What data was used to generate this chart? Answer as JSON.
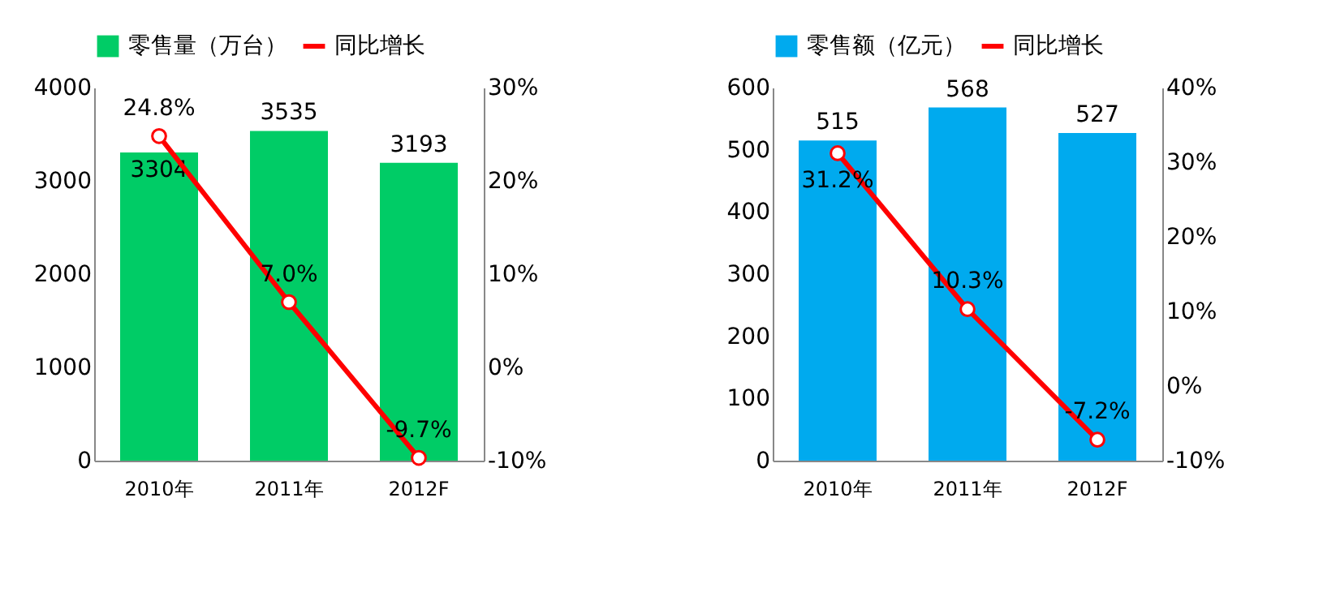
{
  "chart_data": [
    {
      "type": "bar",
      "categories": [
        "2010年",
        "2011年",
        "2012F"
      ],
      "series": [
        {
          "name": "零售量（万台）",
          "color": "#00cc66",
          "values": [
            3304,
            3535,
            3193
          ],
          "value_labels": [
            "3304",
            "3535",
            "3193"
          ]
        },
        {
          "name": "同比增长",
          "type": "line",
          "axis": "y2",
          "color": "#ff0000",
          "marker": "circle",
          "values": [
            24.8,
            7.0,
            -9.7
          ],
          "value_labels": [
            "24.8%",
            "7.0%",
            "-9.7%"
          ]
        }
      ],
      "ylim": [
        0,
        4000
      ],
      "yticks": [
        0,
        1000,
        2000,
        3000,
        4000
      ],
      "y2lim": [
        -10,
        30
      ],
      "y2ticks": [
        {
          "value": -10,
          "label": "-10%"
        },
        {
          "value": 0,
          "label": "0%"
        },
        {
          "value": 10,
          "label": "10%"
        },
        {
          "value": 20,
          "label": "20%"
        },
        {
          "value": 30,
          "label": "30%"
        }
      ],
      "legend": "top",
      "grid": false
    },
    {
      "type": "bar",
      "categories": [
        "2010年",
        "2011年",
        "2012F"
      ],
      "series": [
        {
          "name": "零售额（亿元）",
          "color": "#00aaee",
          "values": [
            515,
            568,
            527
          ],
          "value_labels": [
            "515",
            "568",
            "527"
          ]
        },
        {
          "name": "同比增长",
          "type": "line",
          "axis": "y2",
          "color": "#ff0000",
          "marker": "circle",
          "values": [
            31.2,
            10.3,
            -7.2
          ],
          "value_labels": [
            "31.2%",
            "10.3%",
            "-7.2%"
          ]
        }
      ],
      "ylim": [
        0,
        600
      ],
      "yticks": [
        0,
        100,
        200,
        300,
        400,
        500,
        600
      ],
      "y2lim": [
        -10,
        40
      ],
      "y2ticks": [
        {
          "value": -10,
          "label": "-10%"
        },
        {
          "value": 0,
          "label": "0%"
        },
        {
          "value": 10,
          "label": "10%"
        },
        {
          "value": 20,
          "label": "20%"
        },
        {
          "value": 30,
          "label": "30%"
        },
        {
          "value": 40,
          "label": "40%"
        }
      ],
      "legend": "top",
      "grid": false
    }
  ]
}
